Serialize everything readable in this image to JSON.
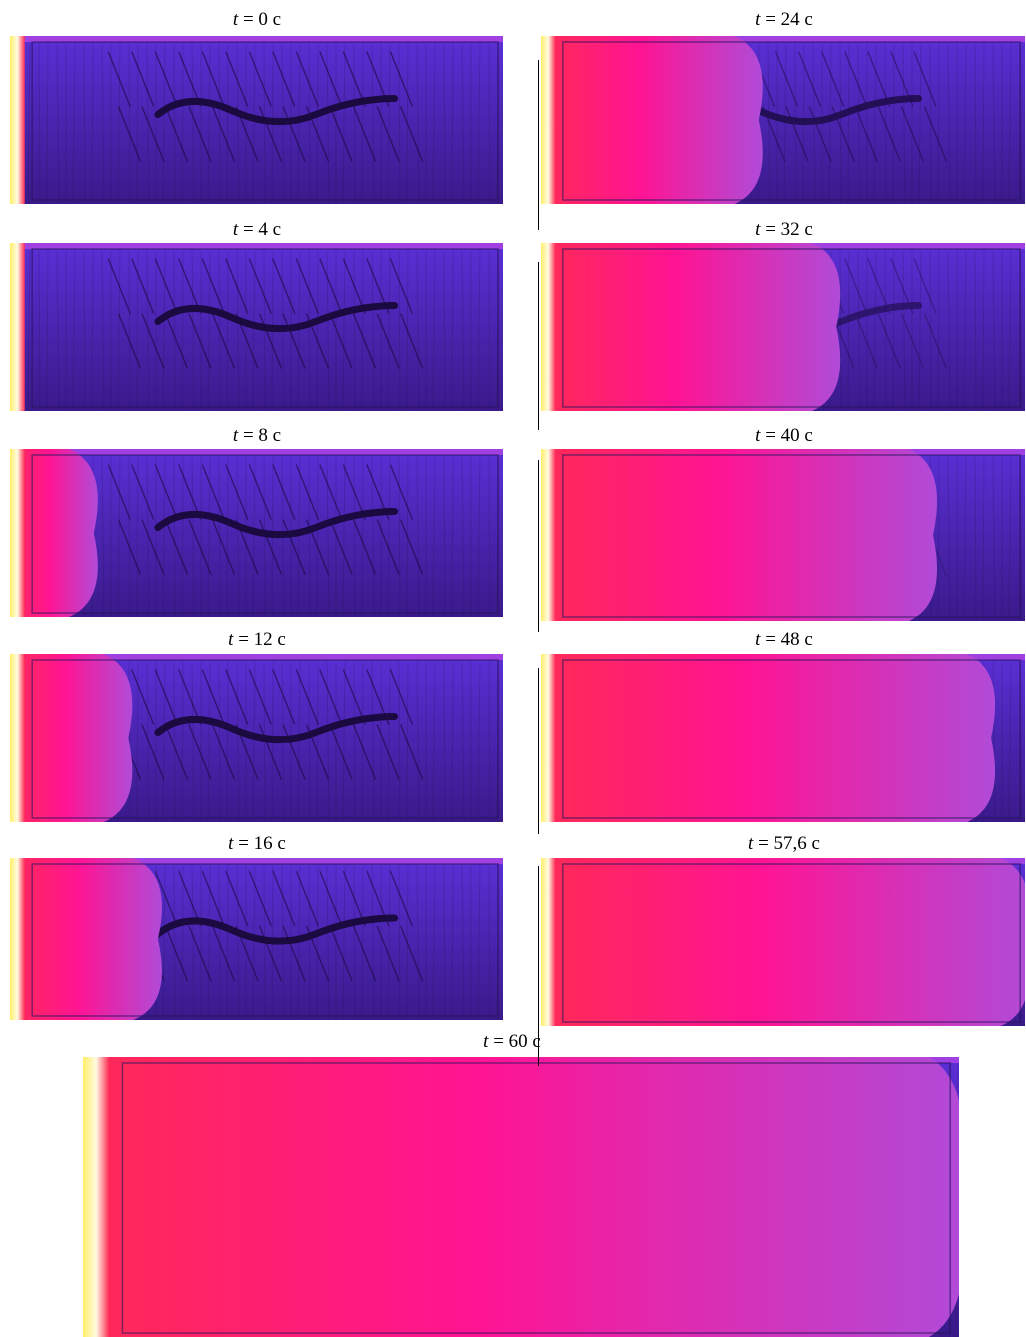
{
  "figure": {
    "frames": [
      {
        "id": "f0",
        "time_var": "t",
        "time_text": "= 0 c",
        "front_fraction": 0.0,
        "crack": true,
        "crack_strength": 1.0
      },
      {
        "id": "f4",
        "time_var": "t",
        "time_text": "= 4 c",
        "front_fraction": 0.0,
        "crack": true,
        "crack_strength": 1.0
      },
      {
        "id": "f8",
        "time_var": "t",
        "time_text": "= 8 c",
        "front_fraction": 0.17,
        "crack": true,
        "crack_strength": 1.0
      },
      {
        "id": "f12",
        "time_var": "t",
        "time_text": "= 12 c",
        "front_fraction": 0.24,
        "crack": true,
        "crack_strength": 1.0
      },
      {
        "id": "f16",
        "time_var": "t",
        "time_text": "= 16 c",
        "front_fraction": 0.3,
        "crack": true,
        "crack_strength": 1.0
      },
      {
        "id": "f24",
        "time_var": "t",
        "time_text": "= 24 c",
        "front_fraction": 0.45,
        "crack": true,
        "crack_strength": 0.8
      },
      {
        "id": "f32",
        "time_var": "t",
        "time_text": "= 32 c",
        "front_fraction": 0.61,
        "crack": true,
        "crack_strength": 0.6
      },
      {
        "id": "f40",
        "time_var": "t",
        "time_text": "= 40 c",
        "front_fraction": 0.81,
        "crack": true,
        "crack_strength": 0.4
      },
      {
        "id": "f48",
        "time_var": "t",
        "time_text": "= 48 c",
        "front_fraction": 0.93,
        "crack": true,
        "crack_strength": 0.25
      },
      {
        "id": "f57",
        "time_var": "t",
        "time_text": "= 57,6 c",
        "front_fraction": 1.0,
        "crack": false,
        "crack_strength": 0.0
      },
      {
        "id": "f60",
        "time_var": "t",
        "time_text": "= 60 c",
        "front_fraction": 1.0,
        "crack": false,
        "crack_strength": 0.0
      }
    ],
    "colors": {
      "cold": "#5b2fd6",
      "cold_dark": "#3a1a8a",
      "crack": "#1a0a40",
      "hot": "#ff2a55",
      "warm": "#ff1493",
      "mid": "#b04bd8",
      "edge_hot": "#ffef6a",
      "edge_white": "#fffbe0",
      "border_top": "#a040e0"
    }
  }
}
